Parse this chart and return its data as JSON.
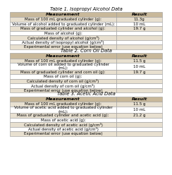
{
  "table1_title": "Table 1. Isopropyl Alcohol Data",
  "table2_title": "Table 2. Corn Oil Data",
  "table3_title": "Table 3. Acetic Acid Data",
  "header": [
    "Measurement",
    "Result"
  ],
  "table1_rows": [
    [
      "Mass of 100 mL graduated cylinder (g):",
      "11.3g"
    ],
    [
      "Volume of alcohol added to graduated cylinder (mL):",
      "10 mL"
    ],
    [
      "Mass of graduated cylinder and alcohol (g):",
      "19.7 g"
    ],
    [
      "Mass of alcohol (g):",
      ""
    ],
    [
      "Calculated density of alcohol (g/cm³)",
      ""
    ],
    [
      "Actual density of isopropyl alcohol (g/cm³)",
      ""
    ],
    [
      "Experimental error (use equation below)",
      ""
    ]
  ],
  "table2_rows": [
    [
      "Mass of 100 mL graduated cylinder (g):",
      "11.5 g"
    ],
    [
      "Volume of corn oil added to graduated cylinder\n(mL):",
      "10 mL"
    ],
    [
      "Mass of graduated cylinder and corn oil (g):",
      "19.7 g"
    ],
    [
      "Mass of corn oil (g):",
      ""
    ],
    [
      "Calculated density of corn oil (g/cm³)",
      ""
    ],
    [
      "Actual density of corn oil (g/cm³)",
      ""
    ],
    [
      "Experimental error (use equation below)",
      ""
    ]
  ],
  "table3_rows": [
    [
      "Mass of 100 mL graduated cylinder (g):",
      "11.5 g"
    ],
    [
      "Volume of acetic acid added to graduated cylinder\n(mL):",
      "10 mL"
    ],
    [
      "Mass of graduated cylinder and acetic acid (g):",
      "21.2 g"
    ],
    [
      "Mass of acetic acid (g):",
      ""
    ],
    [
      "Calculated density of acetic acid (g/cm³)",
      ""
    ],
    [
      "Actual density of acetic acid (g/cm³)",
      ""
    ],
    [
      "Experimental error (use equation below)",
      ""
    ]
  ],
  "header_bg": "#c8b89a",
  "row_bg_alt": "#e8e0d0",
  "row_bg_white": "#ffffff",
  "border_color": "#999999",
  "title_fontsize": 4.8,
  "header_fontsize": 4.5,
  "cell_fontsize": 4.0,
  "bg_color": "#ffffff",
  "col_split": 0.7
}
